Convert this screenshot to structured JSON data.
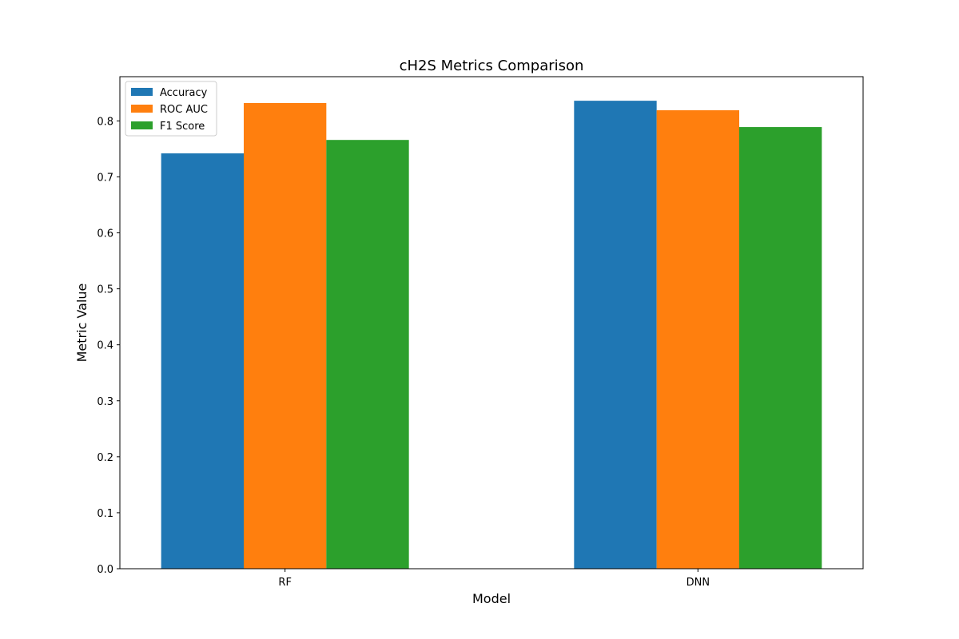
{
  "chart_data": {
    "type": "bar",
    "title": "cH2S Metrics Comparison",
    "xlabel": "Model",
    "ylabel": "Metric Value",
    "categories": [
      "RF",
      "DNN"
    ],
    "series": [
      {
        "name": "Accuracy",
        "color": "#1f77b4",
        "values": [
          0.742,
          0.836
        ]
      },
      {
        "name": "ROC AUC",
        "color": "#ff7f0e",
        "values": [
          0.832,
          0.819
        ]
      },
      {
        "name": "F1 Score",
        "color": "#2ca02c",
        "values": [
          0.766,
          0.789
        ]
      }
    ],
    "ylim": [
      0,
      0.879
    ],
    "yticks": [
      "0.0",
      "0.1",
      "0.2",
      "0.3",
      "0.4",
      "0.5",
      "0.6",
      "0.7",
      "0.8"
    ],
    "grid": false,
    "legend_position": "top-left"
  }
}
